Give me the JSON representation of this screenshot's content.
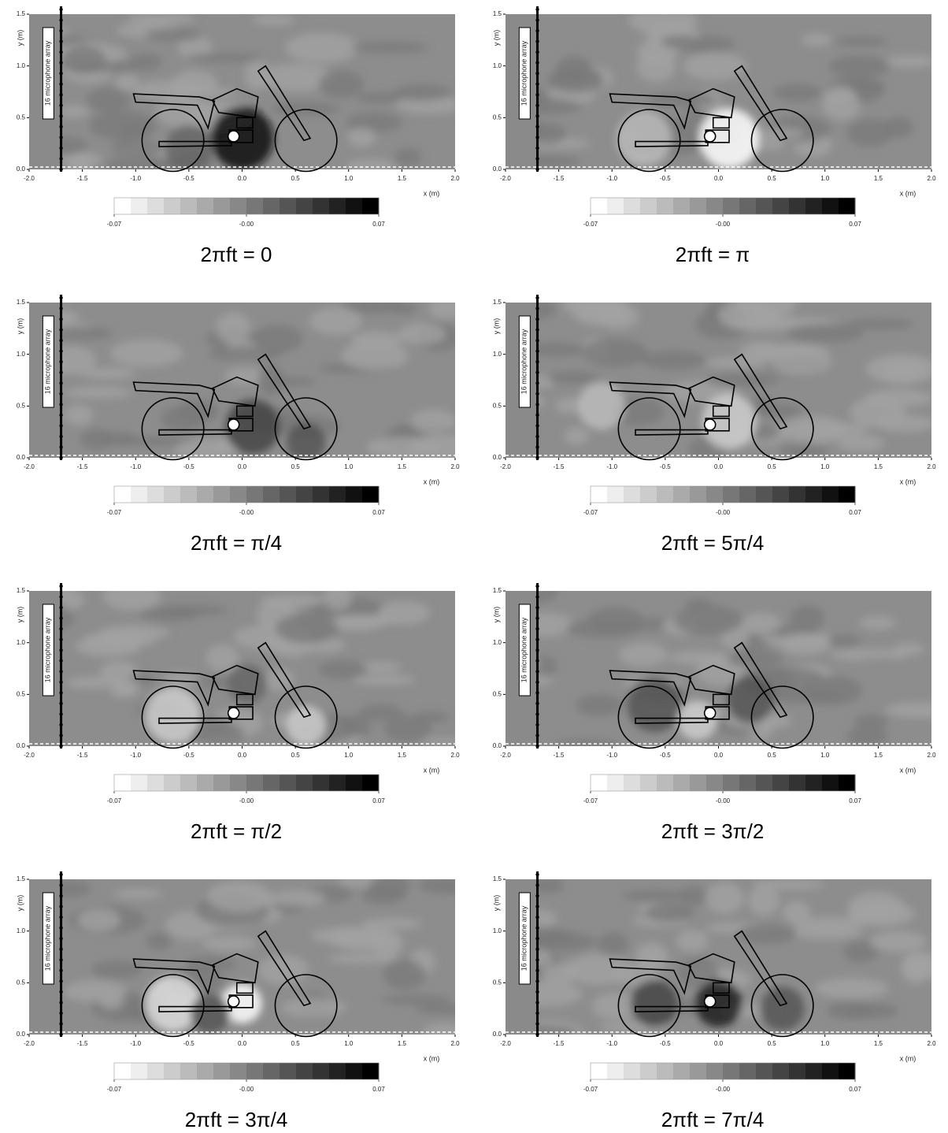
{
  "chart_data": [
    {
      "type": "contour",
      "caption": "2πft = 0",
      "xlabel": "x (m)",
      "ylabel": "y (m)",
      "annotation": "16 microphone array",
      "xlim": [
        -2,
        2
      ],
      "ylim": [
        0,
        1.5
      ],
      "xticks": [
        {
          "value": -2,
          "label": "-2.0"
        },
        -1.5,
        {
          "value": -1,
          "label": "-1.0"
        },
        -0.5,
        {
          "value": 0,
          "label": "0.0"
        },
        0.5,
        {
          "value": 1,
          "label": "1.0"
        },
        1.5,
        {
          "value": 2,
          "label": "2.0"
        }
      ],
      "yticks": [
        {
          "value": 0,
          "label": "0.0"
        },
        0.5,
        {
          "value": 1,
          "label": "1.0"
        },
        1.5
      ],
      "clim": [
        -0.07,
        0.07
      ],
      "cticks": [
        -0.07,
        {
          "value": 0,
          "label": "-0.00"
        },
        0.07
      ],
      "colormap": [
        "#ffffff",
        "#000000"
      ]
    },
    {
      "type": "contour",
      "caption": "2πft = π",
      "xlabel": "x (m)",
      "ylabel": "y (m)",
      "annotation": "16 microphone array",
      "xlim": [
        -2,
        2
      ],
      "ylim": [
        0,
        1.5
      ],
      "xticks": [
        {
          "value": -2,
          "label": "-2.0"
        },
        -1.5,
        {
          "value": -1,
          "label": "-1.0"
        },
        -0.5,
        {
          "value": 0,
          "label": "0.0"
        },
        0.5,
        {
          "value": 1,
          "label": "1.0"
        },
        1.5,
        {
          "value": 2,
          "label": "2.0"
        }
      ],
      "yticks": [
        {
          "value": 0,
          "label": "0.0"
        },
        0.5,
        {
          "value": 1,
          "label": "1.0"
        },
        1.5
      ],
      "clim": [
        -0.07,
        0.07
      ],
      "cticks": [
        -0.07,
        {
          "value": 0,
          "label": "-0.00"
        },
        0.07
      ],
      "colormap": [
        "#ffffff",
        "#000000"
      ]
    },
    {
      "type": "contour",
      "caption": "2πft = π/4",
      "xlabel": "x (m)",
      "ylabel": "y (m)",
      "annotation": "16 microphone array",
      "xlim": [
        -2,
        2
      ],
      "ylim": [
        0,
        1.5
      ],
      "xticks": [
        {
          "value": -2,
          "label": "-2.0"
        },
        -1.5,
        {
          "value": -1,
          "label": "-1.0"
        },
        -0.5,
        {
          "value": 0,
          "label": "0.0"
        },
        0.5,
        {
          "value": 1,
          "label": "1.0"
        },
        1.5,
        {
          "value": 2,
          "label": "2.0"
        }
      ],
      "yticks": [
        {
          "value": 0,
          "label": "0.0"
        },
        0.5,
        {
          "value": 1,
          "label": "1.0"
        },
        1.5
      ],
      "clim": [
        -0.07,
        0.07
      ],
      "cticks": [
        -0.07,
        {
          "value": 0,
          "label": "-0.00"
        },
        0.07
      ],
      "colormap": [
        "#ffffff",
        "#000000"
      ]
    },
    {
      "type": "contour",
      "caption": "2πft = 5π/4",
      "xlabel": "x (m)",
      "ylabel": "y (m)",
      "annotation": "16 microphone array",
      "xlim": [
        -2,
        2
      ],
      "ylim": [
        0,
        1.5
      ],
      "xticks": [
        {
          "value": -2,
          "label": "-2.0"
        },
        -1.5,
        {
          "value": -1,
          "label": "-1.0"
        },
        -0.5,
        {
          "value": 0,
          "label": "0.0"
        },
        0.5,
        {
          "value": 1,
          "label": "1.0"
        },
        1.5,
        {
          "value": 2,
          "label": "2.0"
        }
      ],
      "yticks": [
        {
          "value": 0,
          "label": "0.0"
        },
        0.5,
        {
          "value": 1,
          "label": "1.0"
        },
        1.5
      ],
      "clim": [
        -0.07,
        0.07
      ],
      "cticks": [
        -0.07,
        {
          "value": 0,
          "label": "-0.00"
        },
        0.07
      ],
      "colormap": [
        "#ffffff",
        "#000000"
      ]
    },
    {
      "type": "contour",
      "caption": "2πft = π/2",
      "xlabel": "x (m)",
      "ylabel": "y (m)",
      "annotation": "16 microphone array",
      "xlim": [
        -2,
        2
      ],
      "ylim": [
        0,
        1.5
      ],
      "xticks": [
        {
          "value": -2,
          "label": "-2.0"
        },
        -1.5,
        {
          "value": -1,
          "label": "-1.0"
        },
        -0.5,
        {
          "value": 0,
          "label": "0.0"
        },
        0.5,
        {
          "value": 1,
          "label": "1.0"
        },
        1.5,
        {
          "value": 2,
          "label": "2.0"
        }
      ],
      "yticks": [
        {
          "value": 0,
          "label": "0.0"
        },
        0.5,
        {
          "value": 1,
          "label": "1.0"
        },
        1.5
      ],
      "clim": [
        -0.07,
        0.07
      ],
      "cticks": [
        -0.07,
        {
          "value": 0,
          "label": "-0.00"
        },
        0.07
      ],
      "colormap": [
        "#ffffff",
        "#000000"
      ]
    },
    {
      "type": "contour",
      "caption": "2πft = 3π/2",
      "xlabel": "x (m)",
      "ylabel": "y (m)",
      "annotation": "16 microphone array",
      "xlim": [
        -2,
        2
      ],
      "ylim": [
        0,
        1.5
      ],
      "xticks": [
        {
          "value": -2,
          "label": "-2.0"
        },
        -1.5,
        {
          "value": -1,
          "label": "-1.0"
        },
        -0.5,
        {
          "value": 0,
          "label": "0.0"
        },
        0.5,
        {
          "value": 1,
          "label": "1.0"
        },
        1.5,
        {
          "value": 2,
          "label": "2.0"
        }
      ],
      "yticks": [
        {
          "value": 0,
          "label": "0.0"
        },
        0.5,
        {
          "value": 1,
          "label": "1.0"
        },
        1.5
      ],
      "clim": [
        -0.07,
        0.07
      ],
      "cticks": [
        -0.07,
        {
          "value": 0,
          "label": "-0.00"
        },
        0.07
      ],
      "colormap": [
        "#ffffff",
        "#000000"
      ]
    },
    {
      "type": "contour",
      "caption": "2πft = 3π/4",
      "xlabel": "x (m)",
      "ylabel": "y (m)",
      "annotation": "16 microphone array",
      "xlim": [
        -2,
        2
      ],
      "ylim": [
        0,
        1.5
      ],
      "xticks": [
        {
          "value": -2,
          "label": "-2.0"
        },
        -1.5,
        {
          "value": -1,
          "label": "-1.0"
        },
        -0.5,
        {
          "value": 0,
          "label": "0.0"
        },
        0.5,
        {
          "value": 1,
          "label": "1.0"
        },
        1.5,
        {
          "value": 2,
          "label": "2.0"
        }
      ],
      "yticks": [
        {
          "value": 0,
          "label": "0.0"
        },
        0.5,
        {
          "value": 1,
          "label": "1.0"
        },
        1.5
      ],
      "clim": [
        -0.07,
        0.07
      ],
      "cticks": [
        -0.07,
        {
          "value": 0,
          "label": "-0.00"
        },
        0.07
      ],
      "colormap": [
        "#ffffff",
        "#000000"
      ]
    },
    {
      "type": "contour",
      "caption": "2πft = 7π/4",
      "xlabel": "x (m)",
      "ylabel": "y (m)",
      "annotation": "16 microphone array",
      "xlim": [
        -2,
        2
      ],
      "ylim": [
        0,
        1.5
      ],
      "xticks": [
        {
          "value": -2,
          "label": "-2.0"
        },
        -1.5,
        {
          "value": -1,
          "label": "-1.0"
        },
        -0.5,
        {
          "value": 0,
          "label": "0.0"
        },
        0.5,
        {
          "value": 1,
          "label": "1.0"
        },
        1.5,
        {
          "value": 2,
          "label": "2.0"
        }
      ],
      "yticks": [
        {
          "value": 0,
          "label": "0.0"
        },
        0.5,
        {
          "value": 1,
          "label": "1.0"
        },
        1.5
      ],
      "clim": [
        -0.07,
        0.07
      ],
      "cticks": [
        -0.07,
        {
          "value": 0,
          "label": "-0.00"
        },
        0.07
      ],
      "colormap": [
        "#ffffff",
        "#000000"
      ]
    }
  ]
}
